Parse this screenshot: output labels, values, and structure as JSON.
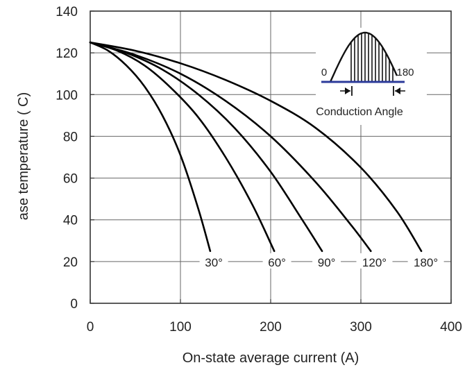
{
  "chart_data": {
    "type": "line",
    "title": "",
    "xlabel": "On-state average current (A)",
    "ylabel": "ase temperature ( C)",
    "xlim": [
      0,
      400
    ],
    "ylim": [
      0,
      140
    ],
    "x_ticks": [
      0,
      100,
      200,
      300,
      400
    ],
    "y_ticks": [
      0,
      20,
      40,
      60,
      80,
      100,
      120,
      140
    ],
    "grid": true,
    "line_color": "#000000",
    "series": [
      {
        "name": "30°",
        "label_x": 137,
        "label_y": 20,
        "points": [
          [
            0,
            125
          ],
          [
            20,
            121
          ],
          [
            40,
            114
          ],
          [
            60,
            104
          ],
          [
            80,
            90
          ],
          [
            100,
            71
          ],
          [
            120,
            45
          ],
          [
            133,
            25
          ]
        ]
      },
      {
        "name": "60°",
        "label_x": 207,
        "label_y": 20,
        "points": [
          [
            0,
            125
          ],
          [
            30,
            121
          ],
          [
            60,
            114
          ],
          [
            90,
            103
          ],
          [
            120,
            89
          ],
          [
            150,
            70
          ],
          [
            180,
            47
          ],
          [
            204,
            25
          ]
        ]
      },
      {
        "name": "90°",
        "label_x": 262,
        "label_y": 20,
        "points": [
          [
            0,
            125
          ],
          [
            40,
            120
          ],
          [
            80,
            112
          ],
          [
            120,
            100
          ],
          [
            160,
            84
          ],
          [
            200,
            63
          ],
          [
            235,
            40
          ],
          [
            257,
            25
          ]
        ]
      },
      {
        "name": "120°",
        "label_x": 315,
        "label_y": 20,
        "points": [
          [
            0,
            125
          ],
          [
            50,
            119
          ],
          [
            100,
            110
          ],
          [
            150,
            97
          ],
          [
            200,
            80
          ],
          [
            250,
            58
          ],
          [
            290,
            37
          ],
          [
            311,
            25
          ]
        ]
      },
      {
        "name": "180°",
        "label_x": 372,
        "label_y": 20,
        "points": [
          [
            0,
            125
          ],
          [
            50,
            121
          ],
          [
            100,
            115
          ],
          [
            150,
            107
          ],
          [
            200,
            97
          ],
          [
            250,
            84
          ],
          [
            300,
            65
          ],
          [
            340,
            44
          ],
          [
            367,
            25
          ]
        ]
      }
    ],
    "inset": {
      "label_start": "0",
      "label_end": "180",
      "caption": "Conduction Angle",
      "baseline_color": "#2b3a9a"
    }
  }
}
